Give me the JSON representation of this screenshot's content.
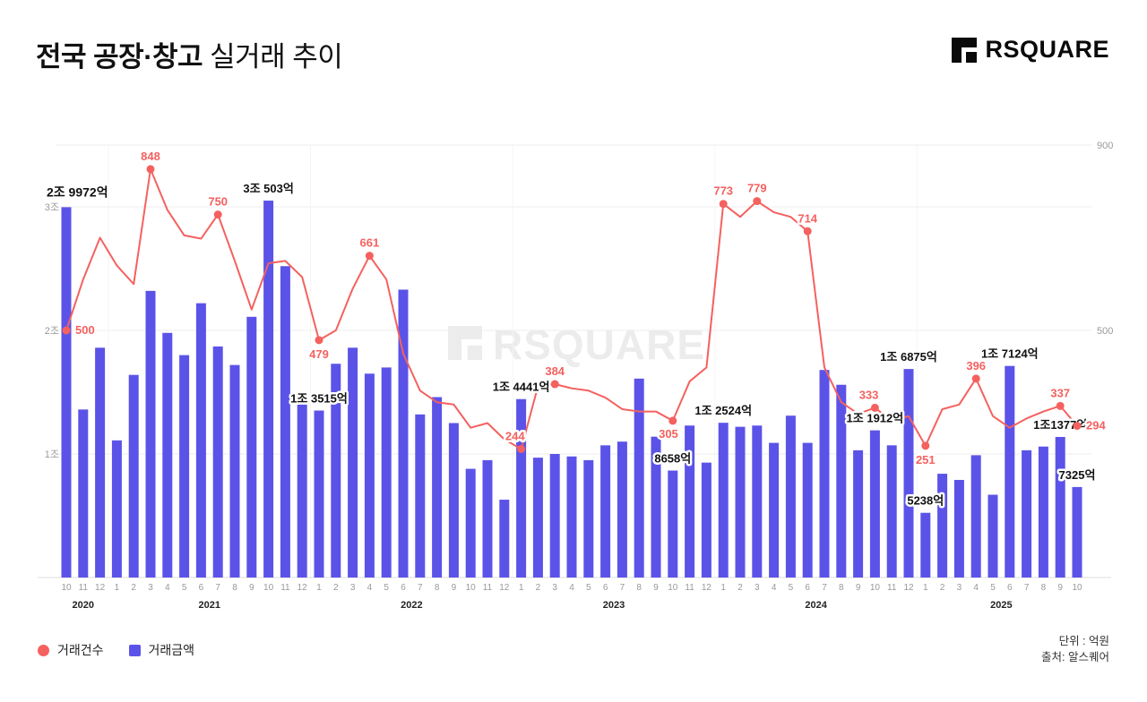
{
  "header": {
    "title_strong": "전국 공장·창고",
    "title_light": "실거래 추이",
    "logo_text": "RSQUARE"
  },
  "watermark": {
    "text": "RSQUARE"
  },
  "legend": {
    "line_label": "거래건수",
    "bar_label": "거래금액"
  },
  "footer": {
    "unit": "단위 : 억원",
    "source": "출처: 알스퀘어"
  },
  "colors": {
    "bar": "#5B53E8",
    "line": "#F4615F",
    "grid": "#ededed",
    "grid_vertical": "#f4f4f4",
    "baseline": "#dcdcdc",
    "axis_text": "#9a9a9a",
    "label_dark": "#111111",
    "watermark": "#ececec"
  },
  "chart_data": {
    "type": "combo-bar-line",
    "title": "전국 공장·창고 실거래 추이",
    "unit": "억원",
    "grid": true,
    "legend_position": "bottom-left",
    "x_months": [
      10,
      11,
      12,
      1,
      2,
      3,
      4,
      5,
      6,
      7,
      8,
      9,
      10,
      11,
      12,
      1,
      2,
      3,
      4,
      5,
      6,
      7,
      8,
      9,
      10,
      11,
      12,
      1,
      2,
      3,
      4,
      5,
      6,
      7,
      8,
      9,
      10,
      11,
      12,
      1,
      2,
      3,
      4,
      5,
      6,
      7,
      8,
      9,
      10,
      11,
      12,
      1,
      2,
      3,
      4,
      5,
      6,
      7,
      8,
      9,
      10
    ],
    "x_years": [
      {
        "label": "2020",
        "from": 0,
        "to": 2
      },
      {
        "label": "2021",
        "from": 3,
        "to": 14
      },
      {
        "label": "2022",
        "from": 15,
        "to": 26
      },
      {
        "label": "2023",
        "from": 27,
        "to": 38
      },
      {
        "label": "2024",
        "from": 39,
        "to": 50
      },
      {
        "label": "2025",
        "from": 51,
        "to": 60
      }
    ],
    "left_axis": {
      "unit": "억원",
      "ticks": [
        {
          "label": "1조",
          "value": 10000
        },
        {
          "label": "2조",
          "value": 20000
        },
        {
          "label": "3조",
          "value": 30000
        }
      ]
    },
    "right_axis": {
      "ticks": [
        500,
        900
      ]
    },
    "series": [
      {
        "name": "거래금액",
        "type": "bar",
        "values": [
          29972,
          13600,
          18600,
          11100,
          16400,
          23200,
          19800,
          18000,
          22200,
          18700,
          17200,
          21100,
          30503,
          25200,
          14000,
          13515,
          17300,
          18600,
          16500,
          17000,
          23300,
          13200,
          14600,
          12500,
          8800,
          9500,
          6300,
          14441,
          9700,
          10000,
          9800,
          9500,
          10700,
          11000,
          16100,
          11400,
          8658,
          12300,
          9300,
          12524,
          12200,
          12300,
          10900,
          13100,
          10900,
          16800,
          15600,
          10300,
          11912,
          10700,
          16875,
          5238,
          8400,
          7900,
          9900,
          6700,
          17124,
          10300,
          10600,
          11377,
          7325
        ]
      },
      {
        "name": "거래건수",
        "type": "line",
        "values": [
          500,
          610,
          700,
          640,
          600,
          848,
          760,
          705,
          698,
          750,
          650,
          545,
          645,
          650,
          615,
          479,
          500,
          590,
          661,
          610,
          450,
          370,
          345,
          340,
          290,
          300,
          265,
          244,
          380,
          384,
          375,
          370,
          355,
          330,
          325,
          325,
          305,
          390,
          420,
          773,
          745,
          779,
          755,
          745,
          714,
          420,
          345,
          320,
          333,
          305,
          315,
          251,
          330,
          340,
          396,
          315,
          290,
          310,
          325,
          337,
          294
        ]
      }
    ],
    "bar_labels": [
      {
        "i": 0,
        "text": "2조 9972억",
        "pos": "left-edge"
      },
      {
        "i": 12,
        "text": "3조 503억",
        "pos": "above"
      },
      {
        "i": 15,
        "text": "1조 3515억",
        "pos": "above"
      },
      {
        "i": 27,
        "text": "1조 4441억",
        "pos": "above"
      },
      {
        "i": 36,
        "text": "8658억",
        "pos": "above"
      },
      {
        "i": 39,
        "text": "1조 2524억",
        "pos": "above"
      },
      {
        "i": 48,
        "text": "1조 1912억",
        "pos": "above"
      },
      {
        "i": 50,
        "text": "1조 6875억",
        "pos": "above"
      },
      {
        "i": 51,
        "text": "5238억",
        "pos": "above"
      },
      {
        "i": 56,
        "text": "1조 7124억",
        "pos": "above"
      },
      {
        "i": 59,
        "text": "1조1377억",
        "pos": "above"
      },
      {
        "i": 60,
        "text": "7325억",
        "pos": "above"
      }
    ],
    "line_labels": [
      {
        "i": 0,
        "text": "500",
        "pos": "right"
      },
      {
        "i": 5,
        "text": "848",
        "pos": "above"
      },
      {
        "i": 9,
        "text": "750",
        "pos": "above"
      },
      {
        "i": 15,
        "text": "479",
        "pos": "below"
      },
      {
        "i": 18,
        "text": "661",
        "pos": "above"
      },
      {
        "i": 27,
        "text": "244",
        "pos": "above-left"
      },
      {
        "i": 29,
        "text": "384",
        "pos": "above"
      },
      {
        "i": 36,
        "text": "305",
        "pos": "below-left"
      },
      {
        "i": 39,
        "text": "773",
        "pos": "above"
      },
      {
        "i": 41,
        "text": "779",
        "pos": "above"
      },
      {
        "i": 44,
        "text": "714",
        "pos": "above"
      },
      {
        "i": 48,
        "text": "333",
        "pos": "above-left"
      },
      {
        "i": 51,
        "text": "251",
        "pos": "below"
      },
      {
        "i": 54,
        "text": "396",
        "pos": "above"
      },
      {
        "i": 59,
        "text": "337",
        "pos": "above"
      },
      {
        "i": 60,
        "text": "294",
        "pos": "right"
      }
    ]
  }
}
